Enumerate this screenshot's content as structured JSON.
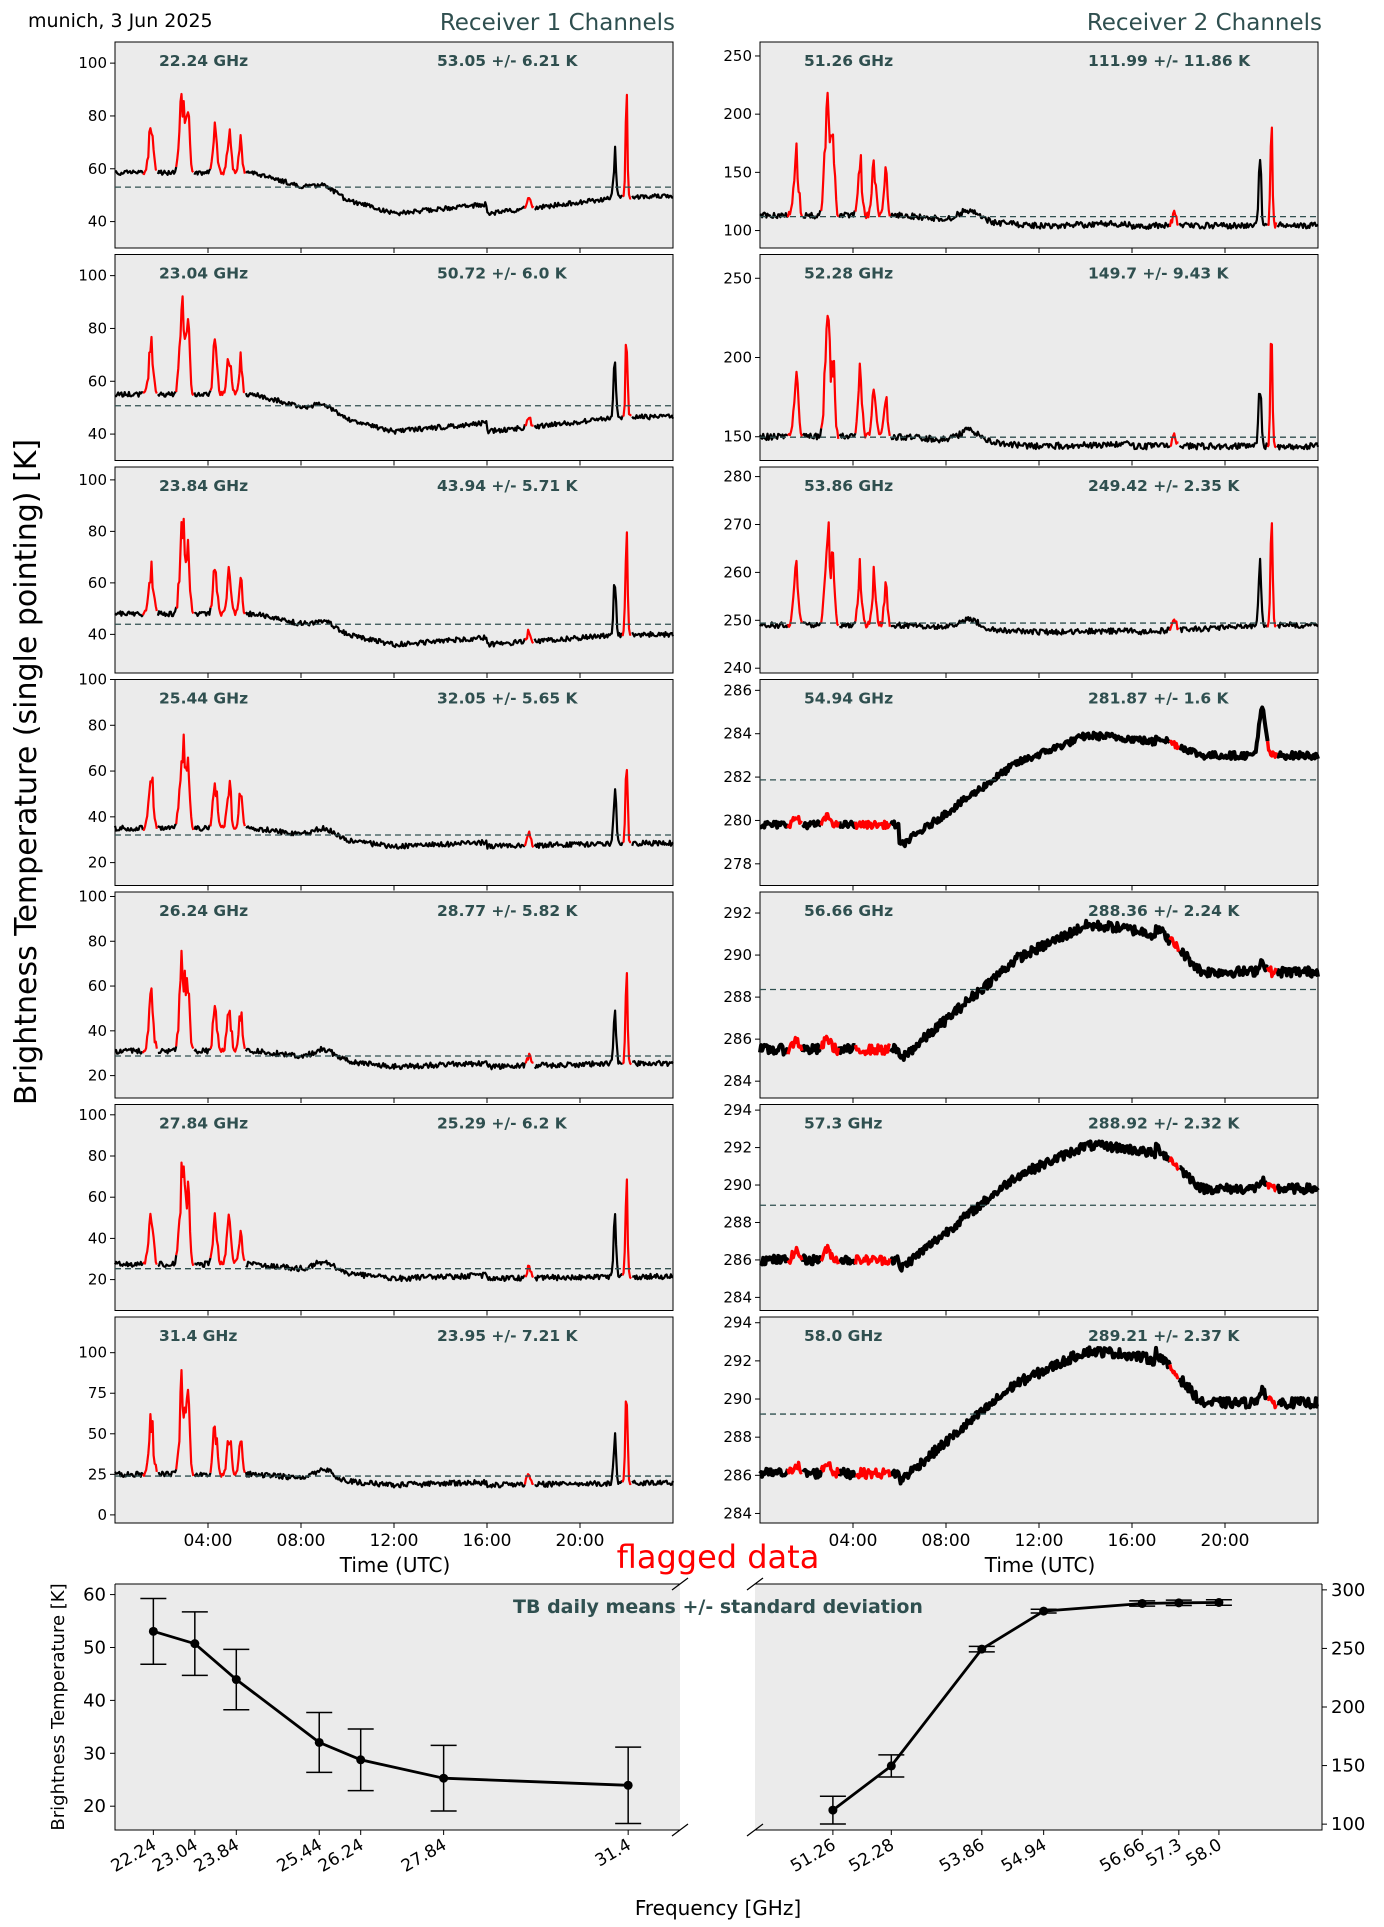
{
  "header": {
    "date_label": "munich, 3 Jun 2025",
    "receiver1_title": "Receiver 1 Channels",
    "receiver2_title": "Receiver 2 Channels"
  },
  "ylabel_main": "Brightness Temperature (single pointing) [K]",
  "xlabel_time": "Time (UTC)",
  "time_ticks": [
    "04:00",
    "08:00",
    "12:00",
    "16:00",
    "20:00"
  ],
  "flag_label": "flagged data",
  "colors": {
    "panel_bg": "#ebebeb",
    "trace": "#000000",
    "flagged": "#ff0000",
    "mean_line": "#2f4f4f",
    "annotation": "#2f4f4f",
    "title": "#2f4f4f",
    "flag_label": "#ff0000"
  },
  "chart_data": [
    {
      "type": "line",
      "receiver": 1,
      "panels": [
        {
          "freq_label": "22.24 GHz",
          "stat_label": "53.05 +/- 6.21 K",
          "mean": 53.05,
          "base": 58.5,
          "low": 43,
          "end": 49.5,
          "spike": 108,
          "ylim": [
            30,
            108
          ],
          "yticks": [
            40,
            60,
            80,
            100
          ]
        },
        {
          "freq_label": "23.04 GHz",
          "stat_label": "50.72 +/- 6.0 K",
          "mean": 50.72,
          "base": 55,
          "low": 41,
          "end": 46.5,
          "spike": 108,
          "ylim": [
            30,
            108
          ],
          "yticks": [
            40,
            60,
            80,
            100
          ]
        },
        {
          "freq_label": "23.84 GHz",
          "stat_label": "43.94 +/- 5.71 K",
          "mean": 43.94,
          "base": 48,
          "low": 36,
          "end": 40,
          "spike": 103,
          "ylim": [
            25,
            105
          ],
          "yticks": [
            40,
            60,
            80,
            100
          ]
        },
        {
          "freq_label": "25.44 GHz",
          "stat_label": "32.05 +/- 5.65 K",
          "mean": 32.05,
          "base": 35,
          "low": 27,
          "end": 28.5,
          "spike": 100,
          "ylim": [
            10,
            100
          ],
          "yticks": [
            20,
            40,
            60,
            80,
            100
          ]
        },
        {
          "freq_label": "26.24 GHz",
          "stat_label": "28.77 +/- 5.82 K",
          "mean": 28.77,
          "base": 31,
          "low": 24,
          "end": 25.5,
          "spike": 100,
          "ylim": [
            10,
            102
          ],
          "yticks": [
            20,
            40,
            60,
            80,
            100
          ]
        },
        {
          "freq_label": "27.84 GHz",
          "stat_label": "25.29 +/- 6.2 K",
          "mean": 25.29,
          "base": 27.5,
          "low": 20.5,
          "end": 21.5,
          "spike": 104,
          "ylim": [
            5,
            105
          ],
          "yticks": [
            20,
            40,
            60,
            80,
            100
          ]
        },
        {
          "freq_label": "31.4 GHz",
          "stat_label": "23.95 +/- 7.21 K",
          "mean": 23.95,
          "base": 25,
          "low": 18.5,
          "end": 19.5,
          "spike": 120,
          "ylim": [
            -5,
            122
          ],
          "yticks": [
            0,
            25,
            50,
            75,
            100
          ]
        }
      ]
    },
    {
      "type": "line",
      "receiver": 2,
      "panels": [
        {
          "freq_label": "51.26 GHz",
          "stat_label": "111.99 +/- 11.86 K",
          "mean": 111.99,
          "base": 113,
          "low": 104,
          "end": 104.5,
          "spike": 262,
          "ylim": [
            85,
            262
          ],
          "yticks": [
            100,
            150,
            200,
            250
          ]
        },
        {
          "freq_label": "52.28 GHz",
          "stat_label": "149.7 +/- 9.43 K",
          "mean": 149.7,
          "base": 150,
          "low": 144,
          "end": 144,
          "spike": 265,
          "ylim": [
            135,
            265
          ],
          "yticks": [
            150,
            200,
            250
          ]
        },
        {
          "freq_label": "53.86 GHz",
          "stat_label": "249.42 +/- 2.35 K",
          "mean": 249.42,
          "base": 249,
          "low": 247.5,
          "end": 249,
          "spike": 282,
          "ylim": [
            239,
            282
          ],
          "yticks": [
            240,
            250,
            260,
            270,
            280
          ]
        },
        {
          "freq_label": "54.94 GHz",
          "stat_label": "281.87 +/- 1.6 K",
          "mean": 281.87,
          "base": 279.8,
          "low": 278.8,
          "end": 283,
          "peak": 283.9,
          "spike": 286.5,
          "ylim": [
            277,
            286.5
          ],
          "yticks": [
            278,
            280,
            282,
            284,
            286
          ]
        },
        {
          "freq_label": "56.66 GHz",
          "stat_label": "288.36 +/- 2.24 K",
          "mean": 288.36,
          "base": 285.5,
          "low": 285.0,
          "end": 289.2,
          "peak": 291.4,
          "spike": 290,
          "ylim": [
            283.2,
            293
          ],
          "yticks": [
            284,
            286,
            288,
            290,
            292
          ]
        },
        {
          "freq_label": "57.3 GHz",
          "stat_label": "288.92 +/- 2.32 K",
          "mean": 288.92,
          "base": 286,
          "low": 285.5,
          "end": 289.8,
          "peak": 292.1,
          "spike": 290.5,
          "ylim": [
            283.3,
            294.3
          ],
          "yticks": [
            284,
            286,
            288,
            290,
            292,
            294
          ]
        },
        {
          "freq_label": "58.0 GHz",
          "stat_label": "289.21 +/- 2.37 K",
          "mean": 289.21,
          "base": 286.1,
          "low": 285.7,
          "end": 289.8,
          "peak": 292.5,
          "spike": 291,
          "ylim": [
            283.5,
            294.3
          ],
          "yticks": [
            284,
            286,
            288,
            290,
            292,
            294
          ]
        }
      ]
    },
    {
      "type": "line",
      "title": "TB daily means +/- standard deviation",
      "xlabel": "Frequency [GHz]",
      "ylabel": "Brightness Temperature [K]",
      "left_series": {
        "x": [
          22.24,
          23.04,
          23.84,
          25.44,
          26.24,
          27.84,
          31.4
        ],
        "x_labels": [
          "22.24",
          "23.04",
          "23.84",
          "25.44",
          "26.24",
          "27.84",
          "31.4"
        ],
        "y": [
          53.05,
          50.72,
          43.94,
          32.05,
          28.77,
          25.29,
          23.95
        ],
        "err": [
          6.21,
          6.0,
          5.71,
          5.65,
          5.82,
          6.2,
          7.21
        ],
        "ylim": [
          15.5,
          62
        ],
        "yticks": [
          20,
          30,
          40,
          50,
          60
        ]
      },
      "right_series": {
        "x": [
          51.26,
          52.28,
          53.86,
          54.94,
          56.66,
          57.3,
          58.0
        ],
        "x_labels": [
          "51.26",
          "52.28",
          "53.86",
          "54.94",
          "56.66",
          "57.3",
          "58.0"
        ],
        "y": [
          111.99,
          149.7,
          249.42,
          281.87,
          288.36,
          288.92,
          289.21
        ],
        "err": [
          11.86,
          9.43,
          2.35,
          1.6,
          2.24,
          2.32,
          2.37
        ],
        "ylim": [
          95,
          305
        ],
        "yticks": [
          100,
          150,
          200,
          250,
          300
        ]
      }
    }
  ]
}
